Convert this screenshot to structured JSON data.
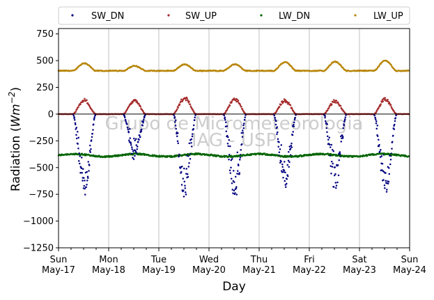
{
  "chart_data": {
    "type": "scatter",
    "title": "",
    "xlabel": "Day",
    "ylabel_prefix": "Radiation (",
    "ylabel_unit": "Wm",
    "ylabel_exp": "−2",
    "ylabel_suffix": ")",
    "ylim": [
      -1250,
      800
    ],
    "xlim": [
      0,
      7
    ],
    "yticks": [
      750,
      500,
      250,
      0,
      -250,
      -500,
      -750,
      -1000,
      -1250
    ],
    "ytick_labels": [
      "750",
      "500",
      "250",
      "0",
      "−250",
      "−500",
      "−750",
      "−1000",
      "−1250"
    ],
    "xticks": [
      {
        "day": "Sun",
        "date": "May-17"
      },
      {
        "day": "Mon",
        "date": "May-18"
      },
      {
        "day": "Tue",
        "date": "May-19"
      },
      {
        "day": "Wed",
        "date": "May-20"
      },
      {
        "day": "Thu",
        "date": "May-21"
      },
      {
        "day": "Fri",
        "date": "May-22"
      },
      {
        "day": "Sat",
        "date": "May-23"
      },
      {
        "day": "Sun",
        "date": "May-24"
      }
    ],
    "grid_x": true,
    "grid_y": false,
    "legend_placement": "top, above plot",
    "series": [
      {
        "name": "SW_DN",
        "color": "#00007f",
        "daily_min": [
          -740,
          -410,
          -760,
          -770,
          -690,
          -680,
          -740
        ]
      },
      {
        "name": "SW_UP",
        "color": "#a52a2a",
        "daily_max": [
          140,
          130,
          160,
          150,
          135,
          130,
          145
        ]
      },
      {
        "name": "LW_DN",
        "color": "#006400",
        "baseline": -385
      },
      {
        "name": "LW_UP",
        "color": "#b8860b",
        "baseline": 405,
        "daily_max": [
          475,
          450,
          465,
          465,
          485,
          490,
          500
        ]
      }
    ],
    "watermark": [
      "Grupo de Micrometeorologia",
      "IAG - USP"
    ]
  }
}
